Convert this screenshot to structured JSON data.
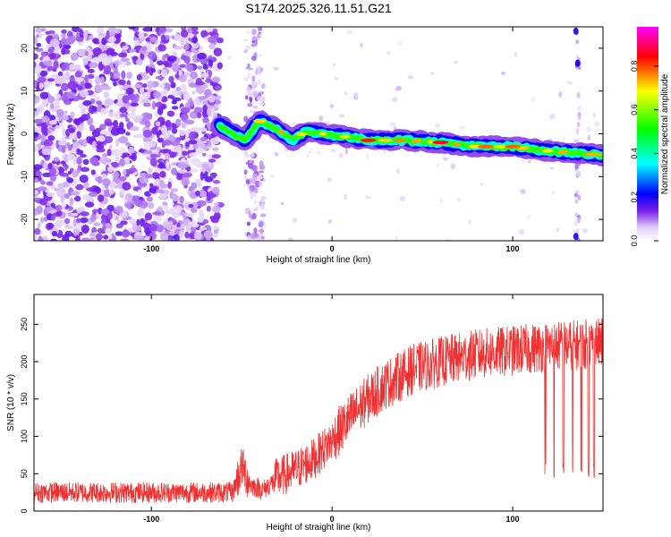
{
  "title": "S174.2025.326.11.51.G21",
  "chart_data": [
    {
      "type": "heatmap",
      "xlabel": "Height of straight line (km)",
      "ylabel": "Frequency (Hz)",
      "xlim": [
        -165,
        150
      ],
      "ylim": [
        -25,
        25
      ],
      "x_ticks": [
        -100,
        0,
        100
      ],
      "y_ticks": [
        -20,
        -10,
        0,
        10,
        20
      ],
      "colorbar": {
        "label": "Normalized spectral amplitude",
        "range": [
          0,
          0.98
        ],
        "ticks": [
          "0.0",
          "0.2",
          "0.4",
          "0.6",
          "0.8"
        ],
        "tick_values": [
          0.0,
          0.2,
          0.4,
          0.6,
          0.8
        ],
        "colors": [
          "#ffffff",
          "#ece0fb",
          "#c8a2f4",
          "#7a1fe8",
          "#0000ff",
          "#00ffff",
          "#00ff00",
          "#ffff00",
          "#ff0000",
          "#ff00ff"
        ]
      },
      "noise_region_end": -62,
      "ridge": [
        {
          "x": -62,
          "y": 2.0
        },
        {
          "x": -55,
          "y": 0.0
        },
        {
          "x": -48,
          "y": -1.5
        },
        {
          "x": -40,
          "y": 3.0
        },
        {
          "x": -30,
          "y": 1.0
        },
        {
          "x": -22,
          "y": -1.5
        },
        {
          "x": -15,
          "y": 0.5
        },
        {
          "x": -5,
          "y": 0.0
        },
        {
          "x": 5,
          "y": -0.5
        },
        {
          "x": 20,
          "y": -1.5
        },
        {
          "x": 40,
          "y": -1.5
        },
        {
          "x": 60,
          "y": -2.0
        },
        {
          "x": 80,
          "y": -3.0
        },
        {
          "x": 100,
          "y": -3.0
        },
        {
          "x": 120,
          "y": -4.0
        },
        {
          "x": 135,
          "y": -4.5
        },
        {
          "x": 150,
          "y": -5.0
        }
      ],
      "ridge_peaks": [
        {
          "x": 20,
          "y": -1.5,
          "v": 0.85
        },
        {
          "x": 60,
          "y": -2.0,
          "v": 0.9
        },
        {
          "x": 85,
          "y": -3.0,
          "v": 0.8
        },
        {
          "x": 100,
          "y": -3.0,
          "v": 0.8
        },
        {
          "x": 145,
          "y": -4.8,
          "v": 0.75
        }
      ]
    },
    {
      "type": "line",
      "xlabel": "Height of straight line (km)",
      "ylabel": "SNR (10 * v/v)",
      "xlim": [
        -165,
        150
      ],
      "ylim": [
        0,
        290
      ],
      "x_ticks": [
        -100,
        0,
        100
      ],
      "y_ticks": [
        0,
        50,
        100,
        150,
        200,
        250
      ],
      "color": "#ef3030",
      "trend": [
        {
          "x": -165,
          "y": 25
        },
        {
          "x": -100,
          "y": 25
        },
        {
          "x": -55,
          "y": 25
        },
        {
          "x": -50,
          "y": 60
        },
        {
          "x": -45,
          "y": 35
        },
        {
          "x": -38,
          "y": 28
        },
        {
          "x": -30,
          "y": 45
        },
        {
          "x": -20,
          "y": 55
        },
        {
          "x": -10,
          "y": 70
        },
        {
          "x": 0,
          "y": 95
        },
        {
          "x": 10,
          "y": 125
        },
        {
          "x": 20,
          "y": 150
        },
        {
          "x": 30,
          "y": 170
        },
        {
          "x": 45,
          "y": 190
        },
        {
          "x": 60,
          "y": 200
        },
        {
          "x": 80,
          "y": 210
        },
        {
          "x": 100,
          "y": 215
        },
        {
          "x": 120,
          "y": 220
        },
        {
          "x": 150,
          "y": 225
        }
      ],
      "dropouts": [
        118,
        123,
        128,
        133,
        138,
        142,
        145
      ]
    }
  ]
}
